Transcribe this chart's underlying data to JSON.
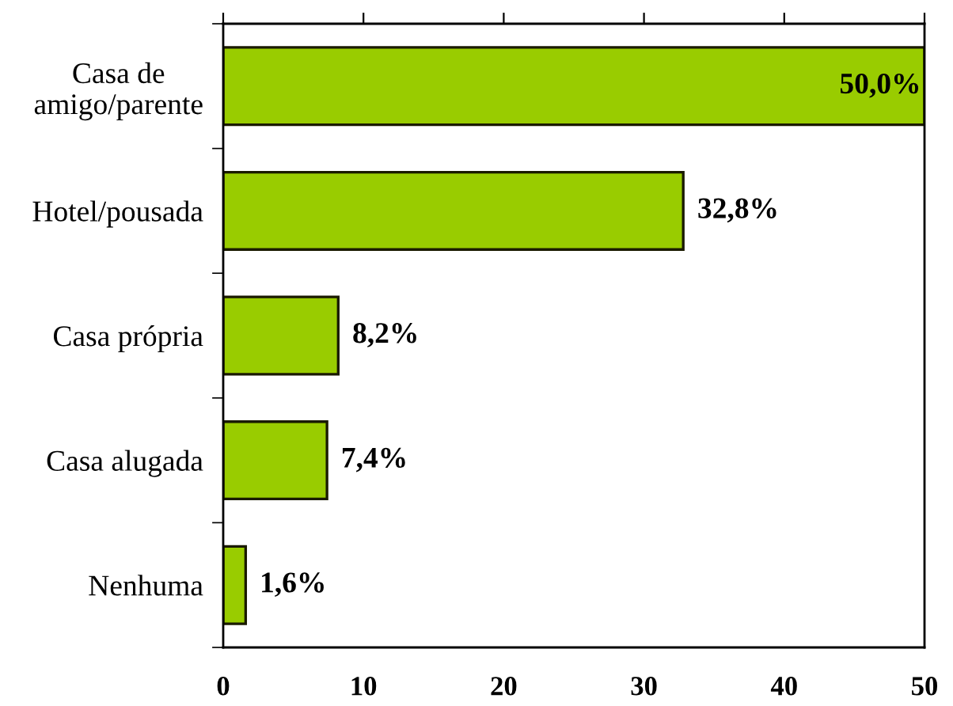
{
  "chart_data": {
    "type": "bar",
    "orientation": "horizontal",
    "categories": [
      "Casa de amigo/parente",
      "Hotel/pousada",
      "Casa própria",
      "Casa alugada",
      "Nenhuma"
    ],
    "values": [
      50.0,
      32.8,
      8.2,
      7.4,
      1.6
    ],
    "color": "#99cc00",
    "value_labels": [
      "50,0%",
      "32,8%",
      "8,2%",
      "7,4%",
      "1,6%"
    ],
    "xlim": [
      0,
      50
    ],
    "xticks": [
      0,
      10,
      20,
      30,
      40,
      50
    ],
    "grid": false,
    "legend": false
  }
}
